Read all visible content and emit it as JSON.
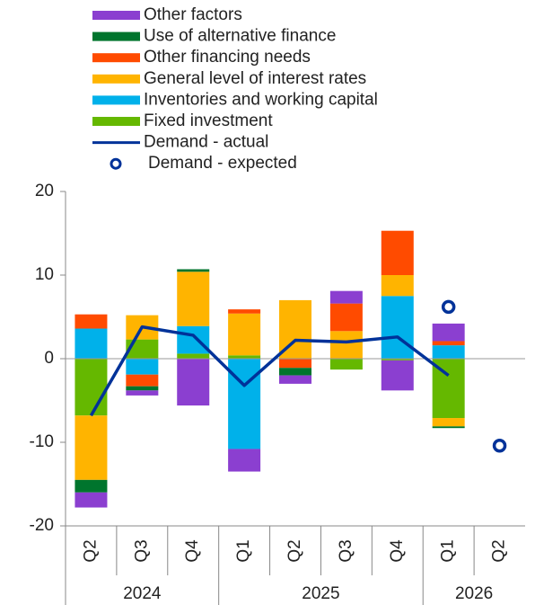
{
  "chart_data": {
    "type": "bar",
    "categories": [
      [
        "Q2",
        "2024"
      ],
      [
        "Q3",
        "2024"
      ],
      [
        "Q4",
        "2024"
      ],
      [
        "Q1",
        "2025"
      ],
      [
        "Q2",
        "2025"
      ],
      [
        "Q3",
        "2025"
      ],
      [
        "Q4",
        "2025"
      ],
      [
        "Q1",
        "2026"
      ],
      [
        "Q2",
        "2026"
      ]
    ],
    "ylim": [
      -20,
      20
    ],
    "yticks": [
      -20,
      -10,
      0,
      10,
      20
    ],
    "series": [
      {
        "name": "Other factors",
        "type": "bar",
        "color": "#8b3fd0",
        "values": [
          -1.8,
          -0.6,
          -5.6,
          -2.7,
          -1.0,
          1.5,
          -3.6,
          2.1,
          null
        ]
      },
      {
        "name": "Use of alternative finance",
        "type": "bar",
        "color": "#00752d",
        "values": [
          -1.5,
          -0.5,
          0.3,
          null,
          -0.9,
          null,
          null,
          -0.2,
          null
        ]
      },
      {
        "name": "Other financing needs",
        "type": "bar",
        "color": "#ff4b00",
        "values": [
          1.7,
          -1.4,
          null,
          0.5,
          -1.1,
          3.3,
          5.3,
          0.5,
          null
        ]
      },
      {
        "name": "General level of interest rates",
        "type": "bar",
        "color": "#ffb400",
        "values": [
          -7.7,
          2.9,
          6.5,
          5.0,
          7.0,
          3.3,
          2.5,
          -1.0,
          null
        ]
      },
      {
        "name": "Inventories and working capital",
        "type": "bar",
        "color": "#00b1ea",
        "values": [
          3.6,
          -1.9,
          3.3,
          -10.8,
          null,
          null,
          7.5,
          1.6,
          null
        ]
      },
      {
        "name": "Fixed investment",
        "type": "bar",
        "color": "#65b800",
        "values": [
          -6.8,
          2.3,
          0.6,
          0.4,
          null,
          -1.3,
          -0.2,
          -7.1,
          null
        ]
      },
      {
        "name": "Demand - actual",
        "type": "line",
        "color": "#003299",
        "values": [
          -6.8,
          3.8,
          2.8,
          -3.2,
          2.2,
          2.0,
          2.6,
          -2.0,
          null
        ]
      },
      {
        "name": "Demand - expected",
        "type": "scatter",
        "color": "#003299",
        "values": [
          null,
          null,
          null,
          null,
          null,
          null,
          null,
          6.2,
          -10.4
        ]
      }
    ]
  }
}
